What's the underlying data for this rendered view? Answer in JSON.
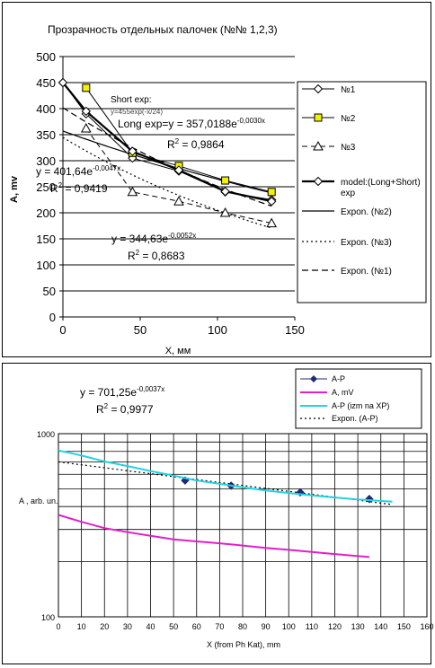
{
  "chart_data": [
    {
      "type": "line",
      "title": "Прозрачность отдельных палочек (№№ 1,2,3)",
      "xlabel": "X, мм",
      "ylabel": "A, mv",
      "xlim": [
        0,
        150
      ],
      "ylim": [
        0,
        500
      ],
      "x_ticks": [
        "0",
        "50",
        "100",
        "150"
      ],
      "y_ticks": [
        "0",
        "50",
        "100",
        "150",
        "200",
        "250",
        "300",
        "350",
        "400",
        "450",
        "500"
      ],
      "grid": "horizontal",
      "legend_position": "right",
      "series": [
        {
          "name": "№1",
          "marker": "diamond",
          "x": [
            0,
            15,
            45,
            75,
            105,
            135
          ],
          "y": [
            450,
            390,
            305,
            280,
            240,
            225
          ]
        },
        {
          "name": "№2",
          "marker": "square",
          "x": [
            15,
            45,
            75,
            105,
            135
          ],
          "y": [
            440,
            315,
            290,
            262,
            240
          ]
        },
        {
          "name": "№3",
          "marker": "triangle",
          "x": [
            15,
            45,
            75,
            105,
            135
          ],
          "y": [
            362,
            240,
            222,
            200,
            180
          ]
        },
        {
          "name": "model:(Long+Short) exp",
          "marker": "diamond",
          "x": [
            0,
            15,
            45,
            75,
            105,
            135
          ],
          "y": [
            450,
            395,
            318,
            282,
            241,
            222
          ]
        },
        {
          "name": "Expon. (№2)",
          "fit": {
            "a": 357.0188,
            "b": -0.003
          },
          "x_range": [
            0,
            135
          ]
        },
        {
          "name": "Expon. (№3)",
          "fit": {
            "a": 344.63,
            "b": -0.0052
          },
          "x_range": [
            0,
            135
          ]
        },
        {
          "name": "Expon. (№1)",
          "fit": {
            "a": 401.64,
            "b": -0.0047
          },
          "x_range": [
            0,
            135
          ]
        }
      ],
      "annotations": {
        "short_exp": "Short exp:",
        "short_exp_formula": "y=455exp(-x/24)",
        "long_exp": "Long exp=y = 357,0188e",
        "long_exp_sup": "-0,0030x",
        "r2_long": "R",
        "r2_long_val": " = 0,9864",
        "fit1": "y = 401,64e",
        "fit1_sup": "-0,0047x",
        "fit1_r": "R",
        "fit1_r_val": " = 0,9419",
        "fit3": "y = 344,63e",
        "fit3_sup": "-0,0052x",
        "fit3_r": "R",
        "fit3_r_val": " = 0,8683",
        "r_sup": "2"
      }
    },
    {
      "type": "line",
      "title": "",
      "xlabel": "X (from Ph Kat), mm",
      "ylabel": "A , arb. un.",
      "xlim": [
        0,
        160
      ],
      "ylim": [
        100,
        1000
      ],
      "y_scale": "log",
      "x_ticks": [
        "0",
        "10",
        "20",
        "30",
        "40",
        "50",
        "60",
        "70",
        "80",
        "90",
        "100",
        "110",
        "120",
        "130",
        "140",
        "150",
        "160"
      ],
      "y_ticks": [
        "100",
        "1000"
      ],
      "grid": "both",
      "legend_position": "top-right",
      "series": [
        {
          "name": "A-P",
          "color": "#1f2a78",
          "marker": "diamond",
          "x": [
            55,
            75,
            105,
            135
          ],
          "y": [
            555,
            520,
            478,
            440
          ]
        },
        {
          "name": "A, mV",
          "color": "#e020c8",
          "x": [
            0,
            10,
            20,
            30,
            40,
            50,
            60,
            70,
            80,
            90,
            100,
            110,
            120,
            135
          ],
          "y": [
            360,
            330,
            305,
            290,
            277,
            265,
            258,
            252,
            245,
            238,
            232,
            226,
            220,
            212
          ]
        },
        {
          "name": "A-P (izm na XP)",
          "color": "#22d3e0",
          "x": [
            0,
            10,
            20,
            30,
            40,
            50,
            60,
            70,
            80,
            90,
            100,
            110,
            120,
            130,
            145
          ],
          "y": [
            810,
            760,
            705,
            665,
            625,
            590,
            555,
            532,
            510,
            490,
            474,
            460,
            448,
            437,
            425
          ]
        },
        {
          "name": "Expon. (A-P)",
          "fit": {
            "a": 701.25,
            "b": -0.0037
          },
          "x_range": [
            0,
            145
          ]
        }
      ],
      "annotations": {
        "fit": "y = 701,25e",
        "fit_sup": "-0,0037x",
        "r2": "R",
        "r2_val": " = 0,9977",
        "r_sup": "2"
      }
    }
  ]
}
